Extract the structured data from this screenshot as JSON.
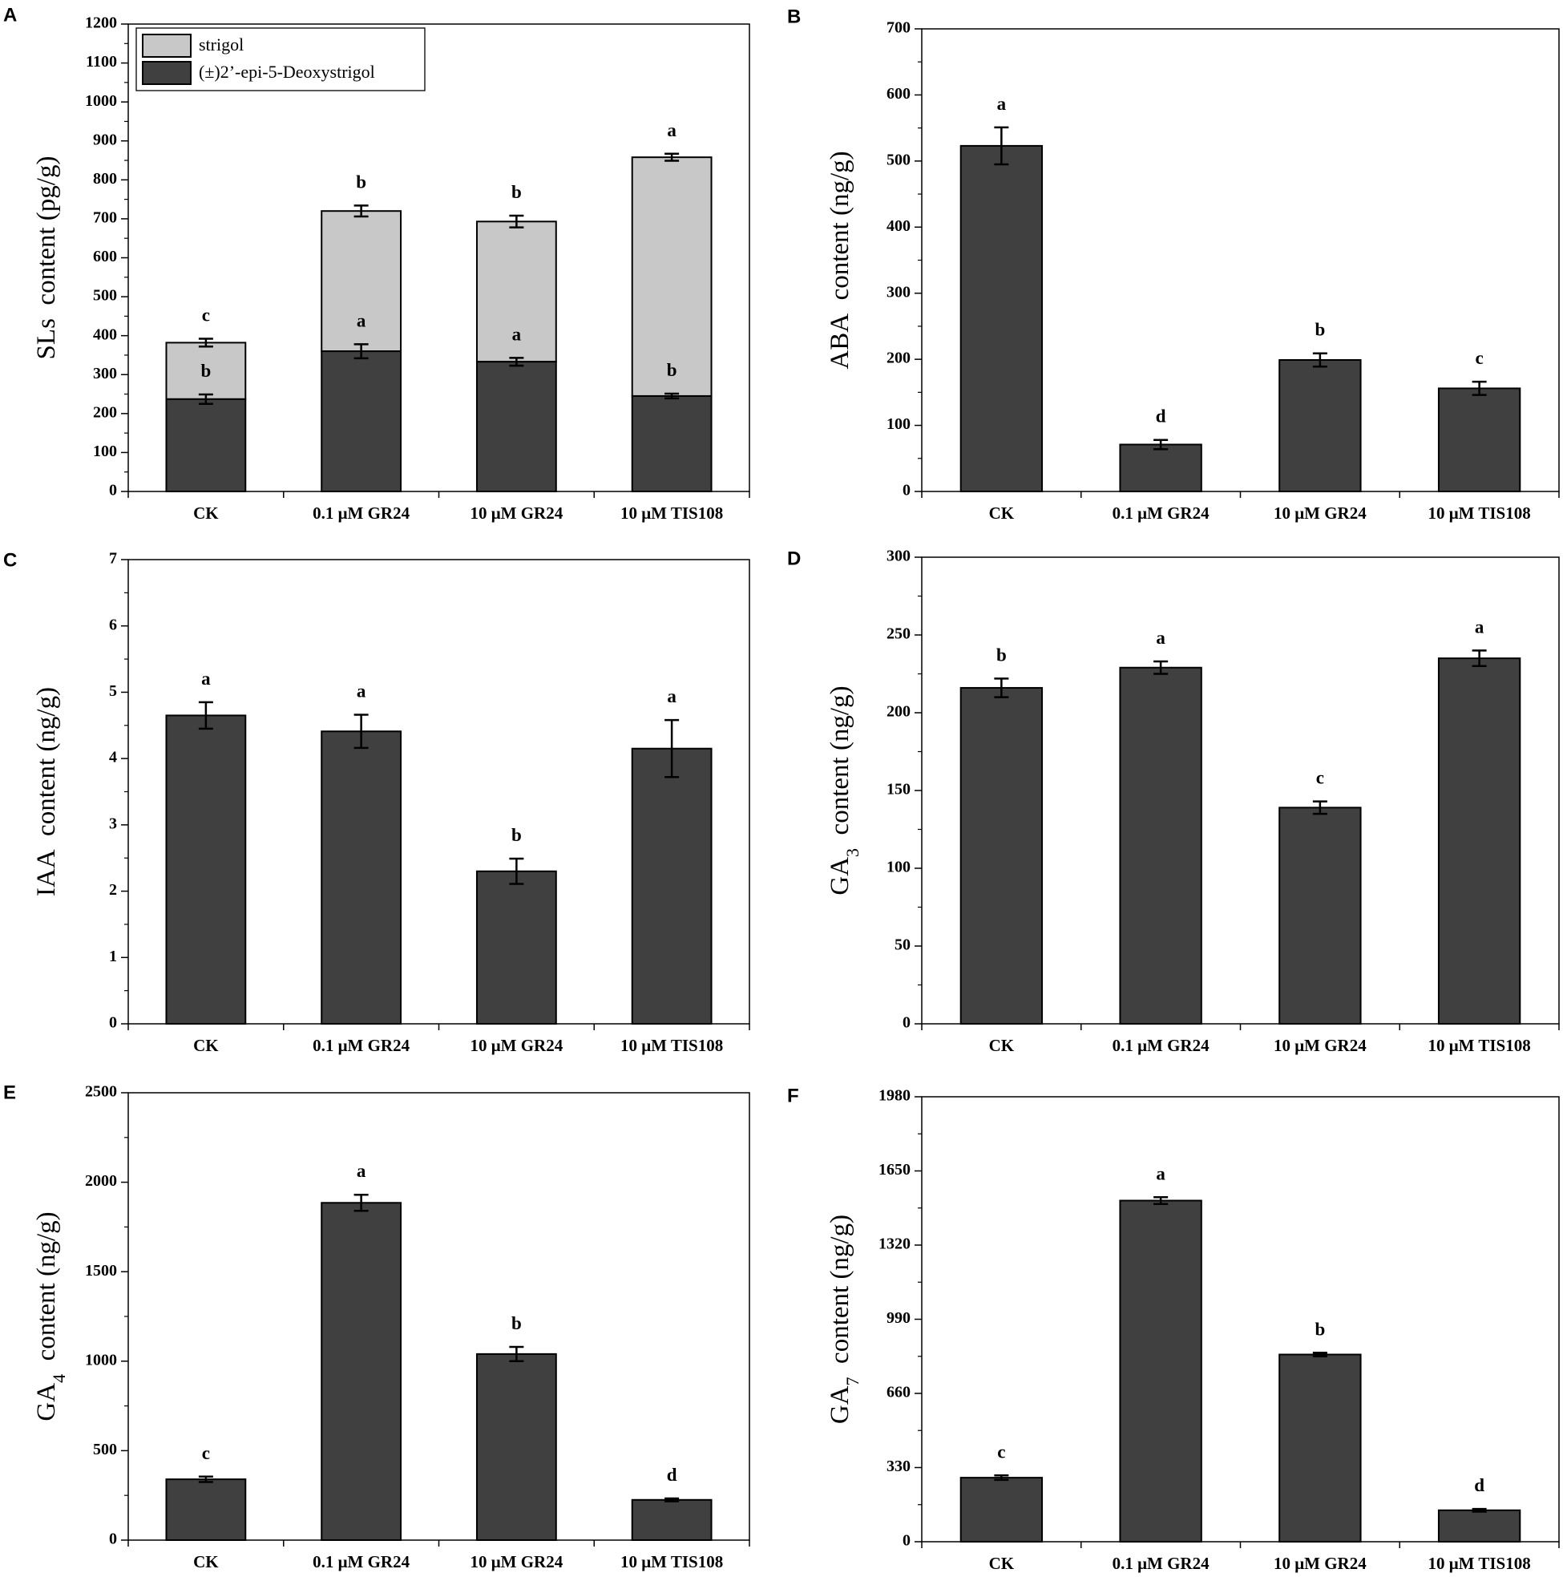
{
  "figure": {
    "colors": {
      "dark": "#404040",
      "light": "#c8c8c8",
      "axis": "#000000"
    }
  },
  "chart_data": [
    {
      "panel": "A",
      "type": "bar",
      "stacked": true,
      "categories": [
        "CK",
        "0.1 μM GR24",
        "10 μM GR24",
        "10 μM TIS108"
      ],
      "series": [
        {
          "name": "(±)2’-epi-5-Deoxystrigol",
          "values": [
            237,
            360,
            333,
            245
          ],
          "errors": [
            12,
            18,
            10,
            6
          ],
          "sig": [
            "b",
            "a",
            "a",
            "b"
          ],
          "color": "#404040"
        },
        {
          "name": "strigol",
          "values": [
            145,
            360,
            360,
            613
          ],
          "totals": [
            382,
            720,
            693,
            858
          ],
          "errors": [
            10,
            14,
            15,
            9
          ],
          "sig": [
            "c",
            "b",
            "b",
            "a"
          ],
          "color": "#c8c8c8"
        }
      ],
      "ylabel_main": "SLs",
      "ylabel_rest": "content (pg/g)",
      "ylim": [
        0,
        1200
      ],
      "yticks": [
        0,
        100,
        200,
        300,
        400,
        500,
        600,
        700,
        800,
        900,
        1000,
        1100,
        1200
      ],
      "legend": {
        "position": "top-left",
        "entries": [
          "strigol",
          "(±)2’-epi-5-Deoxystrigol"
        ]
      }
    },
    {
      "panel": "B",
      "type": "bar",
      "categories": [
        "CK",
        "0.1 μM GR24",
        "10 μM GR24",
        "10 μM TIS108"
      ],
      "values": [
        523,
        71,
        199,
        156
      ],
      "errors": [
        28,
        7,
        10,
        10
      ],
      "sig": [
        "a",
        "d",
        "b",
        "c"
      ],
      "ylabel_main": "ABA",
      "ylabel_rest": "content (ng/g)",
      "ylim": [
        0,
        700
      ],
      "yticks": [
        0,
        100,
        200,
        300,
        400,
        500,
        600,
        700
      ]
    },
    {
      "panel": "C",
      "type": "bar",
      "categories": [
        "CK",
        "0.1 μM GR24",
        "10 μM GR24",
        "10 μM TIS108"
      ],
      "values": [
        4.65,
        4.41,
        2.3,
        4.15
      ],
      "errors": [
        0.2,
        0.25,
        0.19,
        0.43
      ],
      "sig": [
        "a",
        "a",
        "b",
        "a"
      ],
      "ylabel_main": "IAA",
      "ylabel_rest": "content (ng/g)",
      "ylim": [
        0,
        7
      ],
      "yticks": [
        0,
        1,
        2,
        3,
        4,
        5,
        6,
        7
      ]
    },
    {
      "panel": "D",
      "type": "bar",
      "categories": [
        "CK",
        "0.1 μM GR24",
        "10 μM GR24",
        "10 μM TIS108"
      ],
      "values": [
        216,
        229,
        139,
        235
      ],
      "errors": [
        6,
        4,
        4,
        5
      ],
      "sig": [
        "b",
        "a",
        "c",
        "a"
      ],
      "ylabel_main": "GA",
      "ylabel_sub": "3",
      "ylabel_rest": "content (ng/g)",
      "ylim": [
        0,
        300
      ],
      "yticks": [
        0,
        50,
        100,
        150,
        200,
        250,
        300
      ]
    },
    {
      "panel": "E",
      "type": "bar",
      "categories": [
        "CK",
        "0.1 μM GR24",
        "10 μM GR24",
        "10 μM TIS108"
      ],
      "values": [
        340,
        1885,
        1040,
        225
      ],
      "errors": [
        15,
        45,
        40,
        8
      ],
      "sig": [
        "c",
        "a",
        "b",
        "d"
      ],
      "ylabel_main": "GA",
      "ylabel_sub": "4",
      "ylabel_rest": "content (ng/g)",
      "ylim": [
        0,
        2500
      ],
      "yticks": [
        0,
        500,
        1000,
        1500,
        2000,
        2500
      ]
    },
    {
      "panel": "F",
      "type": "bar",
      "categories": [
        "CK",
        "0.1 μM GR24",
        "10 μM GR24",
        "10 μM TIS108"
      ],
      "values": [
        285,
        1518,
        833,
        140
      ],
      "errors": [
        10,
        15,
        8,
        6
      ],
      "sig": [
        "c",
        "a",
        "b",
        "d"
      ],
      "ylabel_main": "GA",
      "ylabel_sub": "7",
      "ylabel_rest": "content (ng/g)",
      "ylim": [
        0,
        1980
      ],
      "yticks": [
        0,
        330,
        660,
        990,
        1320,
        1650,
        1980
      ]
    }
  ]
}
